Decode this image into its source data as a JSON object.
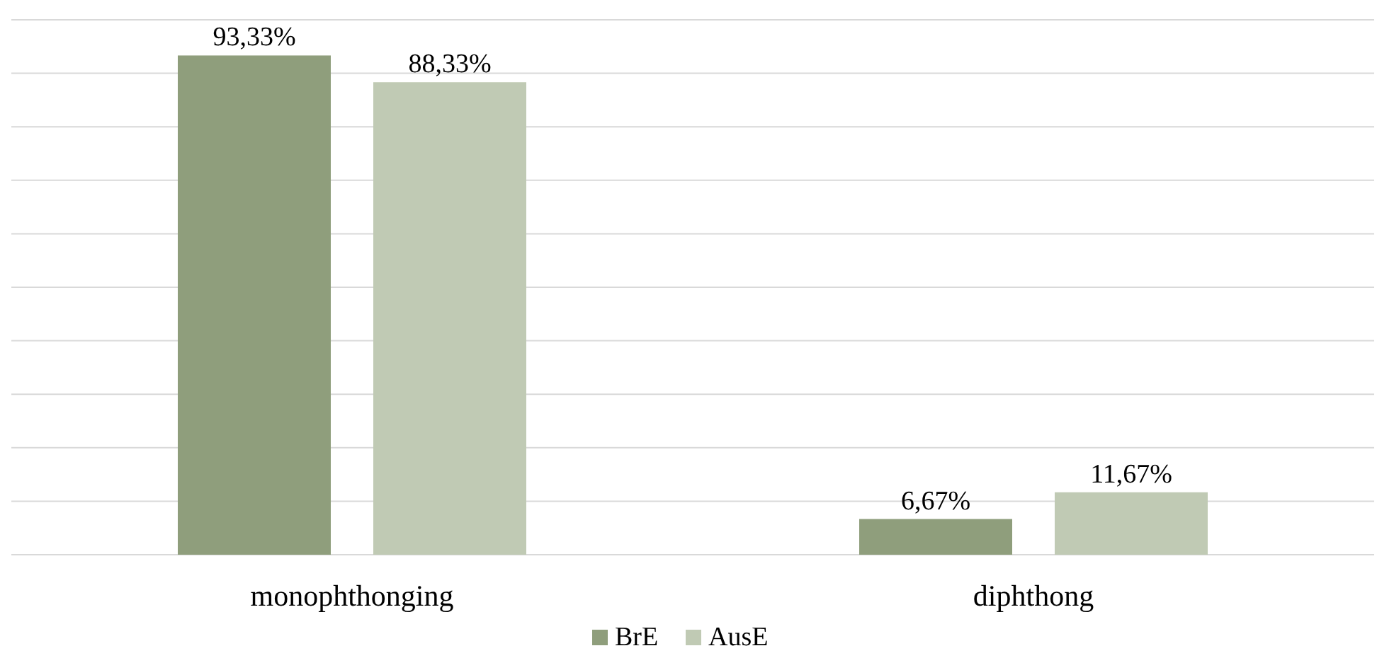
{
  "chart_data": {
    "type": "bar",
    "categories": [
      "monophthonging",
      "diphthong"
    ],
    "series": [
      {
        "name": "BrE",
        "color": "#8f9e7c",
        "values": [
          93.33,
          6.67
        ],
        "value_labels": [
          "93,33%",
          "6,67%"
        ]
      },
      {
        "name": "AusE",
        "color": "#c0cab4",
        "values": [
          88.33,
          11.67
        ],
        "value_labels": [
          "88,33%",
          "11,67%"
        ]
      }
    ],
    "ylim": [
      0,
      100
    ],
    "yticks": [
      {
        "value": 0,
        "label": null
      },
      {
        "value": 10,
        "label": null
      },
      {
        "value": 20,
        "label": null
      },
      {
        "value": 30,
        "label": null
      },
      {
        "value": 40,
        "label": null
      },
      {
        "value": 50,
        "label": null
      },
      {
        "value": 60,
        "label": null
      },
      {
        "value": 70,
        "label": null
      },
      {
        "value": 80,
        "label": null
      },
      {
        "value": 90,
        "label": null
      },
      {
        "value": 100,
        "label": null
      }
    ],
    "grid": "y",
    "tick_labels": "x",
    "legend": "bottom"
  }
}
